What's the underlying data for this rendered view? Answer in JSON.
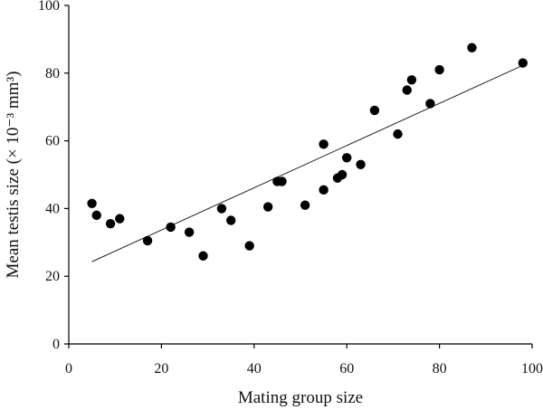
{
  "chart_data": {
    "type": "scatter",
    "title": "",
    "xlabel": "Mating group size",
    "ylabel": "Mean testis size (× 10⁻³ mm³)",
    "xlim": [
      0,
      100
    ],
    "ylim": [
      0,
      100
    ],
    "xticks": [
      "0",
      "20",
      "40",
      "60",
      "80",
      "100"
    ],
    "yticks": [
      "0",
      "20",
      "40",
      "60",
      "80",
      "100"
    ],
    "grid": false,
    "legend": "none",
    "points": [
      {
        "x": 5,
        "y": 41.5
      },
      {
        "x": 6,
        "y": 38
      },
      {
        "x": 9,
        "y": 35.5
      },
      {
        "x": 11,
        "y": 37
      },
      {
        "x": 17,
        "y": 30.5
      },
      {
        "x": 22,
        "y": 34.5
      },
      {
        "x": 26,
        "y": 33
      },
      {
        "x": 29,
        "y": 26
      },
      {
        "x": 33,
        "y": 40
      },
      {
        "x": 35,
        "y": 36.5
      },
      {
        "x": 39,
        "y": 29
      },
      {
        "x": 43,
        "y": 40.5
      },
      {
        "x": 45,
        "y": 48
      },
      {
        "x": 46,
        "y": 48
      },
      {
        "x": 51,
        "y": 41
      },
      {
        "x": 55,
        "y": 59
      },
      {
        "x": 55,
        "y": 45.5
      },
      {
        "x": 58,
        "y": 49
      },
      {
        "x": 59,
        "y": 50
      },
      {
        "x": 60,
        "y": 55
      },
      {
        "x": 63,
        "y": 53
      },
      {
        "x": 66,
        "y": 69
      },
      {
        "x": 71,
        "y": 62
      },
      {
        "x": 73,
        "y": 75
      },
      {
        "x": 74,
        "y": 78
      },
      {
        "x": 78,
        "y": 71
      },
      {
        "x": 80,
        "y": 81
      },
      {
        "x": 87,
        "y": 87.5
      },
      {
        "x": 98,
        "y": 83
      }
    ],
    "trendline": {
      "x": [
        5,
        98
      ],
      "y": [
        24.3,
        82.3
      ]
    },
    "colors": {
      "points": "#000000",
      "line": "#222222",
      "axis": "#000000"
    }
  }
}
